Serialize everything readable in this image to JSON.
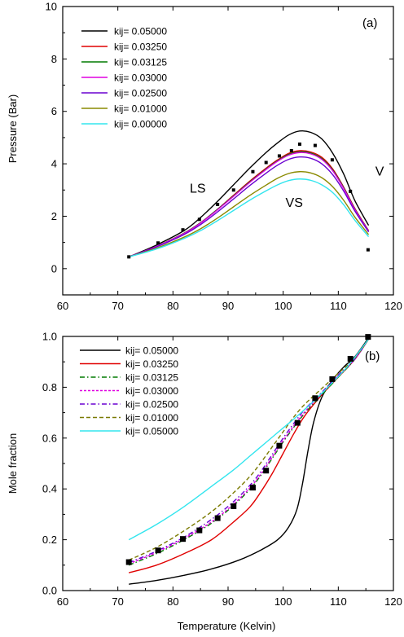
{
  "chart_data": [
    {
      "type": "line",
      "panel_label": "(a)",
      "xlabel": "",
      "ylabel": "Pressure (Bar)",
      "xlim": [
        60,
        120
      ],
      "ylim": [
        -1,
        10
      ],
      "x_ticks": [
        60,
        70,
        80,
        90,
        100,
        110,
        120
      ],
      "y_ticks": [
        0,
        2,
        4,
        6,
        8,
        10
      ],
      "grid": false,
      "legend_position": "top-left",
      "annotations": [
        {
          "text": "LS",
          "x": 84.5,
          "y": 2.9
        },
        {
          "text": "VS",
          "x": 102,
          "y": 2.35
        },
        {
          "text": "V",
          "x": 117.5,
          "y": 3.55
        }
      ],
      "series": [
        {
          "name": "kij= 0.05000",
          "color": "#000000",
          "dash": "",
          "x": [
            72,
            77,
            82,
            85,
            88,
            91,
            94,
            97,
            99,
            101,
            103,
            105,
            107,
            109,
            111,
            113,
            115.5
          ],
          "y": [
            0.45,
            0.9,
            1.45,
            1.95,
            2.55,
            3.2,
            3.85,
            4.45,
            4.8,
            5.1,
            5.25,
            5.2,
            4.95,
            4.4,
            3.6,
            2.6,
            1.65
          ]
        },
        {
          "name": "kij= 0.03250",
          "color": "#e00000",
          "dash": "",
          "x": [
            72,
            77,
            82,
            85,
            88,
            91,
            94,
            97,
            99,
            101,
            103,
            105,
            107,
            109,
            111,
            113,
            115.5
          ],
          "y": [
            0.45,
            0.85,
            1.35,
            1.75,
            2.25,
            2.8,
            3.35,
            3.85,
            4.15,
            4.4,
            4.5,
            4.45,
            4.25,
            3.8,
            3.1,
            2.3,
            1.45
          ]
        },
        {
          "name": "kij= 0.03125",
          "color": "#007a00",
          "dash": "",
          "x": [
            72,
            77,
            82,
            85,
            88,
            91,
            94,
            97,
            99,
            101,
            103,
            105,
            107,
            109,
            111,
            113,
            115.5
          ],
          "y": [
            0.45,
            0.85,
            1.35,
            1.75,
            2.25,
            2.78,
            3.32,
            3.82,
            4.12,
            4.36,
            4.46,
            4.41,
            4.2,
            3.76,
            3.08,
            2.28,
            1.44
          ]
        },
        {
          "name": "kij= 0.03000",
          "color": "#e000e0",
          "dash": "",
          "x": [
            72,
            77,
            82,
            85,
            88,
            91,
            94,
            97,
            99,
            101,
            103,
            105,
            107,
            109,
            111,
            113,
            115.5
          ],
          "y": [
            0.45,
            0.85,
            1.34,
            1.74,
            2.23,
            2.76,
            3.3,
            3.8,
            4.1,
            4.33,
            4.43,
            4.38,
            4.17,
            3.73,
            3.05,
            2.26,
            1.43
          ]
        },
        {
          "name": "kij= 0.02500",
          "color": "#6a00d0",
          "dash": "",
          "x": [
            72,
            77,
            82,
            85,
            88,
            91,
            94,
            97,
            99,
            101,
            103,
            105,
            107,
            109,
            111,
            113,
            115.5
          ],
          "y": [
            0.45,
            0.83,
            1.3,
            1.68,
            2.15,
            2.66,
            3.18,
            3.66,
            3.95,
            4.17,
            4.26,
            4.21,
            4.0,
            3.58,
            2.95,
            2.2,
            1.4
          ]
        },
        {
          "name": "kij= 0.01000",
          "color": "#8a8a00",
          "dash": "",
          "x": [
            72,
            77,
            82,
            85,
            88,
            91,
            94,
            97,
            99,
            101,
            103,
            105,
            107,
            109,
            111,
            113,
            115.5
          ],
          "y": [
            0.45,
            0.78,
            1.2,
            1.52,
            1.92,
            2.36,
            2.8,
            3.2,
            3.45,
            3.63,
            3.7,
            3.65,
            3.47,
            3.12,
            2.6,
            1.97,
            1.3
          ]
        },
        {
          "name": "kij= 0.00000",
          "color": "#33e5ee",
          "dash": "",
          "x": [
            72,
            77,
            82,
            85,
            88,
            91,
            94,
            97,
            99,
            101,
            103,
            105,
            107,
            109,
            111,
            113,
            115.5
          ],
          "y": [
            0.45,
            0.75,
            1.15,
            1.45,
            1.82,
            2.22,
            2.62,
            2.98,
            3.2,
            3.36,
            3.42,
            3.37,
            3.2,
            2.9,
            2.43,
            1.85,
            1.22
          ]
        }
      ],
      "points": {
        "x": [
          72,
          77.3,
          81.8,
          84.8,
          88.1,
          91,
          94.5,
          96.9,
          99.3,
          101.5,
          103,
          105.8,
          108.9,
          112.2,
          115.4
        ],
        "y": [
          0.45,
          0.98,
          1.48,
          1.88,
          2.45,
          3.0,
          3.7,
          4.05,
          4.3,
          4.5,
          4.75,
          4.7,
          4.15,
          2.95,
          0.72
        ]
      }
    },
    {
      "type": "line",
      "panel_label": "(b)",
      "xlabel": "Temperature (Kelvin)",
      "ylabel": "Mole fraction",
      "xlim": [
        60,
        120
      ],
      "ylim": [
        0.0,
        1.0
      ],
      "x_ticks": [
        60,
        70,
        80,
        90,
        100,
        110,
        120
      ],
      "y_ticks": [
        0.0,
        0.2,
        0.4,
        0.6,
        0.8,
        1.0
      ],
      "grid": false,
      "legend_position": "top-left",
      "series": [
        {
          "name": "kij= 0.05000",
          "color": "#000000",
          "dash": "",
          "x": [
            72,
            77,
            82,
            87,
            92,
            96,
            99,
            101,
            102.5,
            103.5,
            104.5,
            105.5,
            107,
            109,
            111,
            113,
            115.5
          ],
          "y": [
            0.025,
            0.04,
            0.06,
            0.085,
            0.12,
            0.16,
            0.2,
            0.25,
            0.32,
            0.42,
            0.55,
            0.66,
            0.76,
            0.83,
            0.88,
            0.92,
            0.995
          ]
        },
        {
          "name": "kij= 0.03250",
          "color": "#e00000",
          "dash": "",
          "x": [
            72,
            77,
            82,
            87,
            91,
            94,
            96,
            98,
            100,
            102,
            104,
            107,
            110,
            113,
            115.5
          ],
          "y": [
            0.07,
            0.1,
            0.145,
            0.2,
            0.27,
            0.33,
            0.39,
            0.46,
            0.54,
            0.62,
            0.69,
            0.77,
            0.84,
            0.91,
            0.99
          ]
        },
        {
          "name": "kij= 0.03125",
          "color": "#007a00",
          "dash": "6,3,1.5,3",
          "x": [
            72,
            77,
            82,
            87,
            91,
            94,
            96,
            98,
            100,
            102,
            104,
            107,
            110,
            113,
            115.5
          ],
          "y": [
            0.1,
            0.145,
            0.2,
            0.265,
            0.335,
            0.4,
            0.455,
            0.52,
            0.585,
            0.645,
            0.7,
            0.77,
            0.84,
            0.91,
            0.99
          ]
        },
        {
          "name": "kij= 0.03000",
          "color": "#e000e0",
          "dash": "3,2",
          "x": [
            72,
            77,
            82,
            87,
            91,
            94,
            96,
            98,
            100,
            102,
            104,
            107,
            110,
            113,
            115.5
          ],
          "y": [
            0.105,
            0.15,
            0.205,
            0.27,
            0.34,
            0.405,
            0.46,
            0.525,
            0.59,
            0.65,
            0.705,
            0.775,
            0.845,
            0.91,
            0.99
          ]
        },
        {
          "name": "kij= 0.02500",
          "color": "#6a00d0",
          "dash": "6,3,1.5,3",
          "x": [
            72,
            77,
            82,
            87,
            91,
            94,
            96,
            98,
            100,
            102,
            104,
            107,
            110,
            113,
            115.5
          ],
          "y": [
            0.11,
            0.155,
            0.21,
            0.28,
            0.35,
            0.415,
            0.47,
            0.535,
            0.6,
            0.66,
            0.715,
            0.78,
            0.848,
            0.912,
            0.99
          ]
        },
        {
          "name": "kij= 0.01000",
          "color": "#7a7a00",
          "dash": "5,3",
          "x": [
            72,
            77,
            82,
            87,
            91,
            94,
            96,
            98,
            100,
            102,
            104,
            107,
            110,
            113,
            115.5
          ],
          "y": [
            0.12,
            0.17,
            0.235,
            0.31,
            0.385,
            0.45,
            0.505,
            0.565,
            0.625,
            0.685,
            0.735,
            0.795,
            0.855,
            0.915,
            0.99
          ]
        },
        {
          "name": "kij= 0.05000",
          "color": "#33e5ee",
          "dash": "",
          "x": [
            72,
            77,
            82,
            87,
            91,
            94,
            97,
            100,
            103,
            106,
            109,
            112,
            115.5
          ],
          "y": [
            0.2,
            0.26,
            0.33,
            0.41,
            0.475,
            0.53,
            0.585,
            0.64,
            0.695,
            0.755,
            0.82,
            0.89,
            0.99
          ]
        }
      ],
      "points": {
        "x": [
          72,
          77.3,
          81.8,
          84.8,
          88.1,
          91,
          94.5,
          96.9,
          99.3,
          102.6,
          105.8,
          108.9,
          112.2,
          115.4
        ],
        "y": [
          0.112,
          0.158,
          0.203,
          0.237,
          0.285,
          0.332,
          0.405,
          0.472,
          0.57,
          0.66,
          0.757,
          0.832,
          0.912,
          0.998
        ]
      }
    }
  ]
}
